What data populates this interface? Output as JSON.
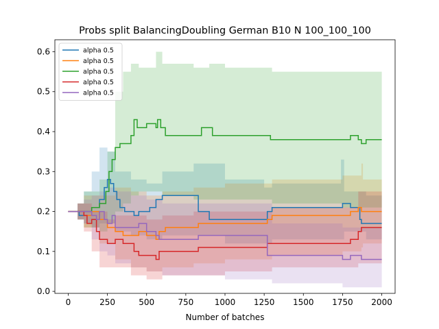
{
  "chart_data": {
    "type": "line",
    "title": "Probs split BalancingDoubling German B10 N 100_100_100",
    "xlabel": "Number of batches",
    "ylabel": "",
    "xlim": [
      -85,
      2085
    ],
    "ylim": [
      -0.005,
      0.63
    ],
    "xticks": [
      0,
      250,
      500,
      750,
      1000,
      1250,
      1500,
      1750,
      2000
    ],
    "yticks": [
      0.0,
      0.1,
      0.2,
      0.3,
      0.4,
      0.5,
      0.6
    ],
    "legend_position": "upper left",
    "grid": false,
    "series": [
      {
        "name": "alpha 0.5",
        "color": "#1f77b4",
        "points": [
          [
            0,
            0.2
          ],
          [
            60,
            0.2
          ],
          [
            70,
            0.19
          ],
          [
            100,
            0.2
          ],
          [
            150,
            0.21
          ],
          [
            200,
            0.23
          ],
          [
            230,
            0.26
          ],
          [
            250,
            0.28
          ],
          [
            270,
            0.27
          ],
          [
            290,
            0.25
          ],
          [
            310,
            0.23
          ],
          [
            330,
            0.21
          ],
          [
            360,
            0.2
          ],
          [
            400,
            0.2
          ],
          [
            420,
            0.19
          ],
          [
            450,
            0.2
          ],
          [
            520,
            0.21
          ],
          [
            560,
            0.23
          ],
          [
            600,
            0.24
          ],
          [
            700,
            0.24
          ],
          [
            820,
            0.24
          ],
          [
            830,
            0.2
          ],
          [
            880,
            0.2
          ],
          [
            900,
            0.18
          ],
          [
            1000,
            0.18
          ],
          [
            1250,
            0.18
          ],
          [
            1270,
            0.2
          ],
          [
            1300,
            0.21
          ],
          [
            1600,
            0.21
          ],
          [
            1740,
            0.21
          ],
          [
            1750,
            0.22
          ],
          [
            1800,
            0.21
          ],
          [
            1860,
            0.18
          ],
          [
            1870,
            0.17
          ],
          [
            2000,
            0.17
          ]
        ],
        "band": [
          [
            0,
            0.2,
            0.2
          ],
          [
            60,
            0.18,
            0.22
          ],
          [
            100,
            0.17,
            0.25
          ],
          [
            150,
            0.16,
            0.3
          ],
          [
            200,
            0.17,
            0.36
          ],
          [
            250,
            0.17,
            0.35
          ],
          [
            300,
            0.15,
            0.3
          ],
          [
            400,
            0.14,
            0.28
          ],
          [
            500,
            0.13,
            0.27
          ],
          [
            600,
            0.14,
            0.3
          ],
          [
            800,
            0.14,
            0.32
          ],
          [
            1000,
            0.12,
            0.28
          ],
          [
            1250,
            0.12,
            0.26
          ],
          [
            1300,
            0.13,
            0.27
          ],
          [
            1500,
            0.13,
            0.27
          ],
          [
            1740,
            0.13,
            0.33
          ],
          [
            1760,
            0.15,
            0.25
          ],
          [
            1900,
            0.13,
            0.24
          ],
          [
            2000,
            0.12,
            0.23
          ]
        ]
      },
      {
        "name": "alpha 0.5",
        "color": "#ff7f0e",
        "points": [
          [
            0,
            0.2
          ],
          [
            60,
            0.2
          ],
          [
            100,
            0.19
          ],
          [
            150,
            0.2
          ],
          [
            200,
            0.18
          ],
          [
            250,
            0.16
          ],
          [
            300,
            0.15
          ],
          [
            350,
            0.14
          ],
          [
            400,
            0.14
          ],
          [
            450,
            0.15
          ],
          [
            500,
            0.14
          ],
          [
            560,
            0.13
          ],
          [
            580,
            0.15
          ],
          [
            620,
            0.16
          ],
          [
            800,
            0.16
          ],
          [
            830,
            0.17
          ],
          [
            1000,
            0.17
          ],
          [
            1260,
            0.17
          ],
          [
            1270,
            0.18
          ],
          [
            1300,
            0.19
          ],
          [
            1500,
            0.19
          ],
          [
            1750,
            0.19
          ],
          [
            1800,
            0.2
          ],
          [
            1850,
            0.21
          ],
          [
            1870,
            0.2
          ],
          [
            2000,
            0.2
          ]
        ],
        "band": [
          [
            0,
            0.2,
            0.2
          ],
          [
            60,
            0.18,
            0.22
          ],
          [
            100,
            0.16,
            0.24
          ],
          [
            200,
            0.12,
            0.24
          ],
          [
            300,
            0.08,
            0.26
          ],
          [
            400,
            0.06,
            0.25
          ],
          [
            500,
            0.05,
            0.24
          ],
          [
            600,
            0.06,
            0.25
          ],
          [
            800,
            0.07,
            0.26
          ],
          [
            1000,
            0.08,
            0.27
          ],
          [
            1250,
            0.08,
            0.27
          ],
          [
            1300,
            0.09,
            0.28
          ],
          [
            1500,
            0.09,
            0.28
          ],
          [
            1750,
            0.1,
            0.29
          ],
          [
            1870,
            0.11,
            0.32
          ],
          [
            1880,
            0.12,
            0.28
          ],
          [
            2000,
            0.12,
            0.29
          ]
        ]
      },
      {
        "name": "alpha 0.5",
        "color": "#2ca02c",
        "points": [
          [
            0,
            0.2
          ],
          [
            60,
            0.2
          ],
          [
            100,
            0.2
          ],
          [
            150,
            0.21
          ],
          [
            200,
            0.22
          ],
          [
            240,
            0.25
          ],
          [
            260,
            0.3
          ],
          [
            280,
            0.33
          ],
          [
            300,
            0.36
          ],
          [
            330,
            0.37
          ],
          [
            360,
            0.37
          ],
          [
            400,
            0.39
          ],
          [
            420,
            0.43
          ],
          [
            440,
            0.41
          ],
          [
            500,
            0.42
          ],
          [
            560,
            0.41
          ],
          [
            570,
            0.43
          ],
          [
            590,
            0.41
          ],
          [
            620,
            0.39
          ],
          [
            700,
            0.39
          ],
          [
            820,
            0.39
          ],
          [
            850,
            0.41
          ],
          [
            900,
            0.41
          ],
          [
            920,
            0.39
          ],
          [
            1000,
            0.39
          ],
          [
            1250,
            0.39
          ],
          [
            1290,
            0.38
          ],
          [
            1500,
            0.38
          ],
          [
            1750,
            0.38
          ],
          [
            1800,
            0.39
          ],
          [
            1850,
            0.38
          ],
          [
            1870,
            0.37
          ],
          [
            1900,
            0.38
          ],
          [
            2000,
            0.38
          ]
        ],
        "band": [
          [
            0,
            0.2,
            0.2
          ],
          [
            60,
            0.18,
            0.22
          ],
          [
            100,
            0.16,
            0.25
          ],
          [
            200,
            0.15,
            0.28
          ],
          [
            250,
            0.17,
            0.35
          ],
          [
            300,
            0.2,
            0.5
          ],
          [
            350,
            0.22,
            0.55
          ],
          [
            400,
            0.24,
            0.57
          ],
          [
            450,
            0.25,
            0.56
          ],
          [
            500,
            0.25,
            0.56
          ],
          [
            560,
            0.25,
            0.6
          ],
          [
            600,
            0.24,
            0.57
          ],
          [
            800,
            0.23,
            0.56
          ],
          [
            900,
            0.23,
            0.57
          ],
          [
            1000,
            0.23,
            0.56
          ],
          [
            1250,
            0.23,
            0.56
          ],
          [
            1300,
            0.22,
            0.55
          ],
          [
            1500,
            0.22,
            0.55
          ],
          [
            1750,
            0.21,
            0.55
          ],
          [
            2000,
            0.21,
            0.55
          ]
        ]
      },
      {
        "name": "alpha 0.5",
        "color": "#d62728",
        "points": [
          [
            0,
            0.2
          ],
          [
            60,
            0.2
          ],
          [
            100,
            0.19
          ],
          [
            120,
            0.17
          ],
          [
            150,
            0.18
          ],
          [
            180,
            0.15
          ],
          [
            200,
            0.13
          ],
          [
            250,
            0.12
          ],
          [
            300,
            0.13
          ],
          [
            350,
            0.12
          ],
          [
            400,
            0.12
          ],
          [
            420,
            0.1
          ],
          [
            450,
            0.09
          ],
          [
            500,
            0.09
          ],
          [
            560,
            0.08
          ],
          [
            580,
            0.1
          ],
          [
            620,
            0.1
          ],
          [
            800,
            0.1
          ],
          [
            830,
            0.11
          ],
          [
            1000,
            0.11
          ],
          [
            1250,
            0.11
          ],
          [
            1270,
            0.12
          ],
          [
            1500,
            0.12
          ],
          [
            1750,
            0.12
          ],
          [
            1800,
            0.13
          ],
          [
            1850,
            0.15
          ],
          [
            1870,
            0.16
          ],
          [
            2000,
            0.16
          ]
        ],
        "band": [
          [
            0,
            0.2,
            0.2
          ],
          [
            60,
            0.18,
            0.22
          ],
          [
            100,
            0.15,
            0.22
          ],
          [
            150,
            0.1,
            0.2
          ],
          [
            200,
            0.06,
            0.2
          ],
          [
            250,
            0.06,
            0.18
          ],
          [
            300,
            0.06,
            0.19
          ],
          [
            400,
            0.04,
            0.19
          ],
          [
            500,
            0.03,
            0.18
          ],
          [
            600,
            0.04,
            0.19
          ],
          [
            800,
            0.04,
            0.2
          ],
          [
            1000,
            0.05,
            0.2
          ],
          [
            1250,
            0.05,
            0.2
          ],
          [
            1300,
            0.06,
            0.21
          ],
          [
            1500,
            0.06,
            0.21
          ],
          [
            1750,
            0.06,
            0.21
          ],
          [
            1850,
            0.07,
            0.25
          ],
          [
            2000,
            0.07,
            0.25
          ]
        ]
      },
      {
        "name": "alpha 0.5",
        "color": "#9467bd",
        "points": [
          [
            0,
            0.2
          ],
          [
            60,
            0.2
          ],
          [
            100,
            0.2
          ],
          [
            150,
            0.19
          ],
          [
            180,
            0.18
          ],
          [
            200,
            0.2
          ],
          [
            230,
            0.18
          ],
          [
            250,
            0.17
          ],
          [
            280,
            0.19
          ],
          [
            300,
            0.16
          ],
          [
            350,
            0.16
          ],
          [
            400,
            0.16
          ],
          [
            450,
            0.17
          ],
          [
            500,
            0.15
          ],
          [
            560,
            0.14
          ],
          [
            580,
            0.13
          ],
          [
            620,
            0.13
          ],
          [
            700,
            0.13
          ],
          [
            800,
            0.13
          ],
          [
            830,
            0.14
          ],
          [
            1000,
            0.14
          ],
          [
            1250,
            0.14
          ],
          [
            1270,
            0.09
          ],
          [
            1500,
            0.09
          ],
          [
            1750,
            0.08
          ],
          [
            1800,
            0.09
          ],
          [
            1850,
            0.09
          ],
          [
            1870,
            0.08
          ],
          [
            2000,
            0.08
          ]
        ],
        "band": [
          [
            0,
            0.2,
            0.2
          ],
          [
            60,
            0.18,
            0.22
          ],
          [
            100,
            0.17,
            0.23
          ],
          [
            150,
            0.13,
            0.24
          ],
          [
            200,
            0.1,
            0.25
          ],
          [
            250,
            0.09,
            0.26
          ],
          [
            300,
            0.07,
            0.25
          ],
          [
            400,
            0.06,
            0.24
          ],
          [
            500,
            0.05,
            0.23
          ],
          [
            600,
            0.04,
            0.22
          ],
          [
            800,
            0.04,
            0.22
          ],
          [
            1000,
            0.03,
            0.22
          ],
          [
            1250,
            0.03,
            0.22
          ],
          [
            1300,
            0.02,
            0.17
          ],
          [
            1500,
            0.02,
            0.17
          ],
          [
            1750,
            0.01,
            0.16
          ],
          [
            2000,
            0.01,
            0.15
          ]
        ]
      }
    ]
  }
}
